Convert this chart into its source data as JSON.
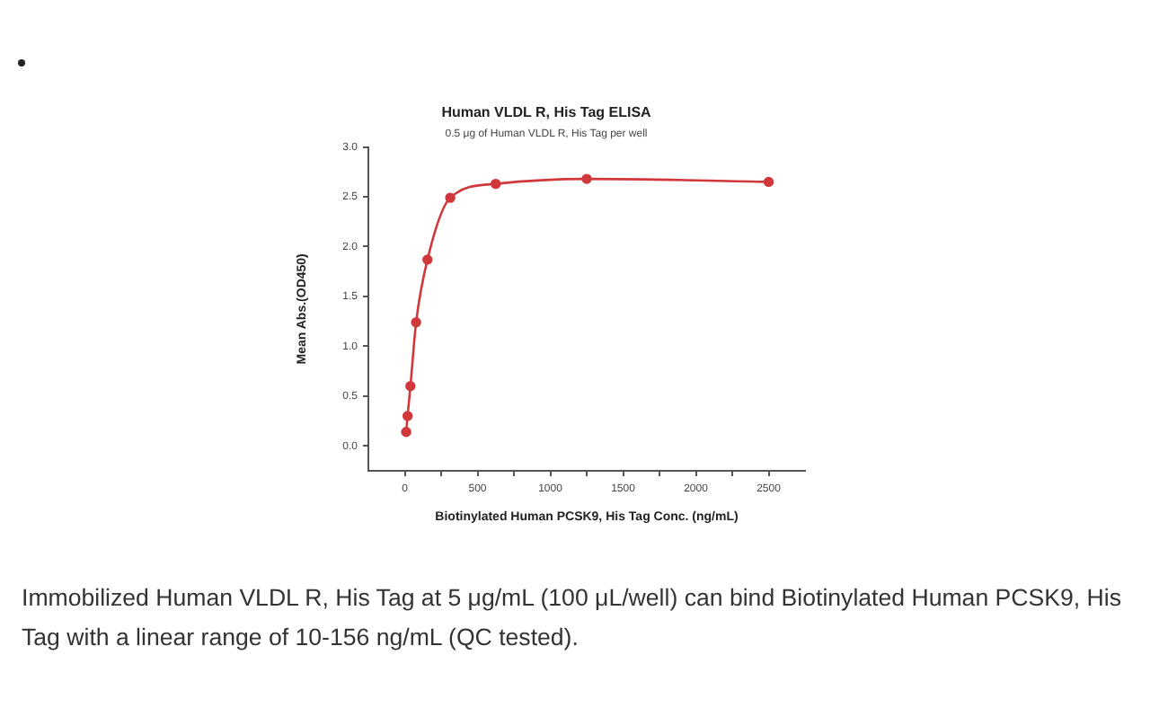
{
  "chart_data": {
    "type": "line",
    "title": "Human VLDL R, His Tag ELISA",
    "subtitle": "0.5 μg of Human VLDL R, His Tag per well",
    "xlabel": "Biotinylated Human PCSK9, His Tag Conc. (ng/mL)",
    "ylabel": "Mean Abs.(OD450)",
    "x": [
      9.8,
      19.5,
      39,
      78,
      156,
      312.5,
      625,
      1250,
      2500
    ],
    "series": [
      {
        "color": "#d0383c",
        "values": [
          0.14,
          0.3,
          0.6,
          1.24,
          1.87,
          2.49,
          2.63,
          2.68,
          2.65
        ]
      }
    ],
    "xlim": [
      -250,
      2750
    ],
    "xticks": [
      0,
      {
        "value": 250,
        "label": null
      },
      500,
      {
        "value": 750,
        "label": null
      },
      1000,
      {
        "value": 1250,
        "label": null
      },
      1500,
      {
        "value": 1750,
        "label": null
      },
      2000,
      {
        "value": 2250,
        "label": null
      },
      2500
    ],
    "ylim": [
      -0.25,
      3
    ],
    "yticks": [
      {
        "value": 0,
        "label": "0.0"
      },
      0.5,
      {
        "value": 1,
        "label": "1.0"
      },
      1.5,
      {
        "value": 2,
        "label": "2.0"
      },
      2.5,
      {
        "value": 3,
        "label": "3.0"
      }
    ],
    "grid": false,
    "legend": false,
    "marker": "circle",
    "line_style": "solid",
    "annotations": [
      "Immobilized Human VLDL R, His Tag at 5 μg/mL (100 μL/well) can bind Biotinylated Human PCSK9, His Tag with a linear range of 10-156 ng/mL (QC tested)."
    ]
  }
}
